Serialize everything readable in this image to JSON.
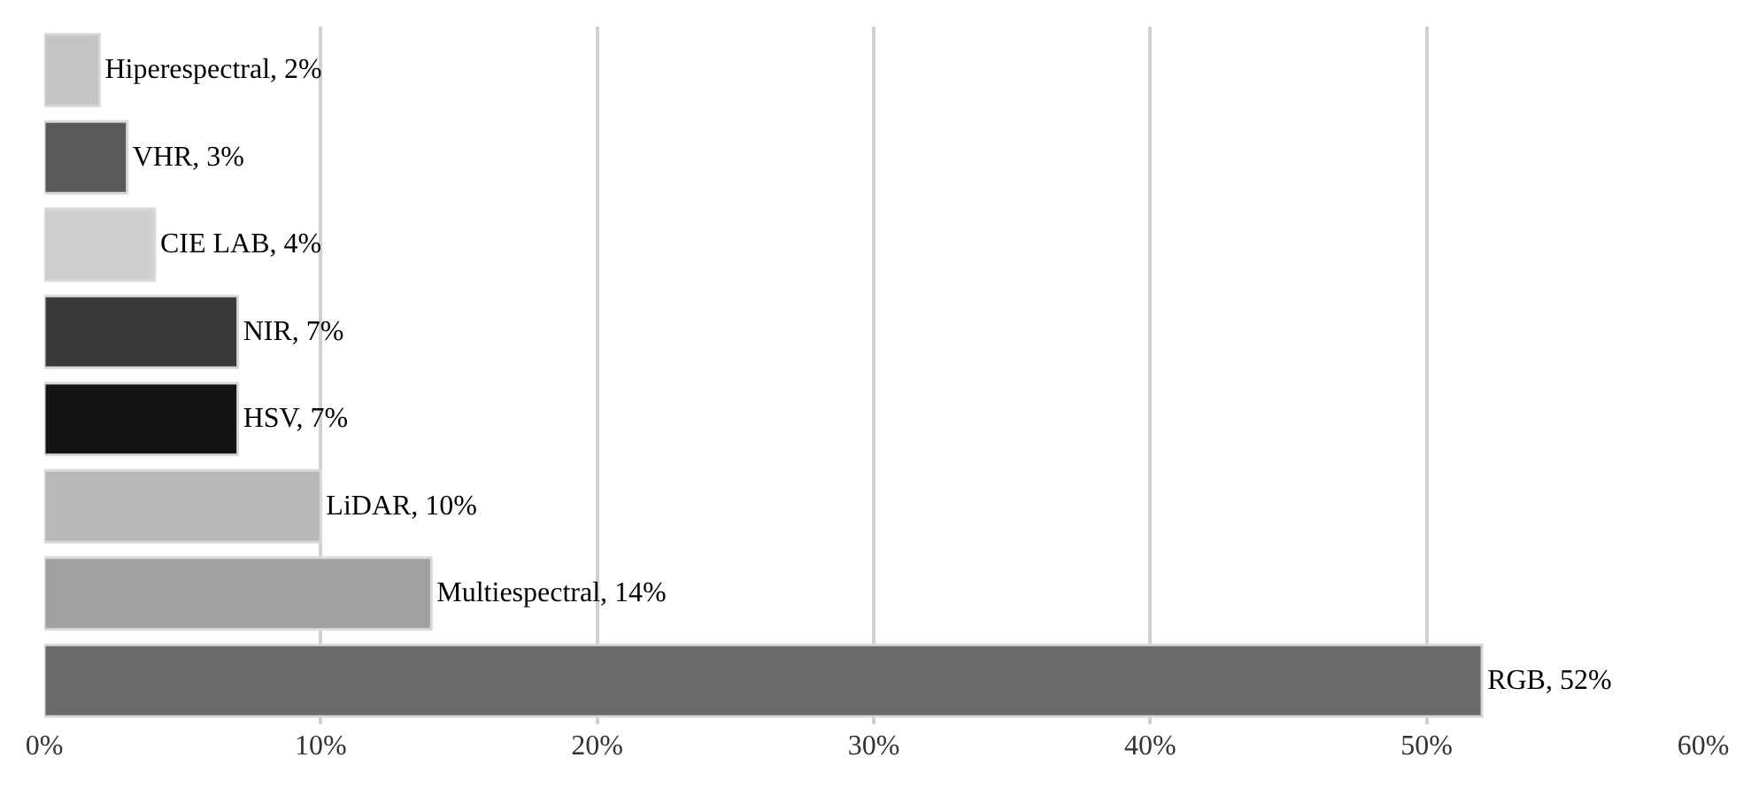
{
  "chart_data": {
    "type": "bar",
    "orientation": "horizontal",
    "categories": [
      null,
      null,
      null,
      null,
      null,
      null,
      null,
      null
    ],
    "values": [
      2,
      3,
      4,
      7,
      7,
      10,
      14,
      52
    ],
    "colors": [
      "#c4c4c4",
      "#5a5a5a",
      "#cfcfcf",
      "#3a3a3a",
      "#141414",
      "#b8b8b8",
      "#a0a0a0",
      "#6a6a6a"
    ],
    "value_labels": [
      "Hiperespectral, 2%",
      "VHR, 3%",
      "CIE LAB, 4%",
      "NIR, 7%",
      "HSV, 7%",
      "LiDAR, 10%",
      "Multiespectral, 14%",
      "RGB, 52%"
    ],
    "xlim": [
      0,
      60
    ],
    "xticks": [
      {
        "value": 0,
        "label": "0%"
      },
      {
        "value": 10,
        "label": "10%"
      },
      {
        "value": 20,
        "label": "20%"
      },
      {
        "value": 30,
        "label": "30%"
      },
      {
        "value": 40,
        "label": "40%"
      },
      {
        "value": 50,
        "label": "50%"
      },
      {
        "value": 60,
        "label": "60%"
      }
    ],
    "grid": "x",
    "legend": false,
    "tick_labels": "x"
  }
}
